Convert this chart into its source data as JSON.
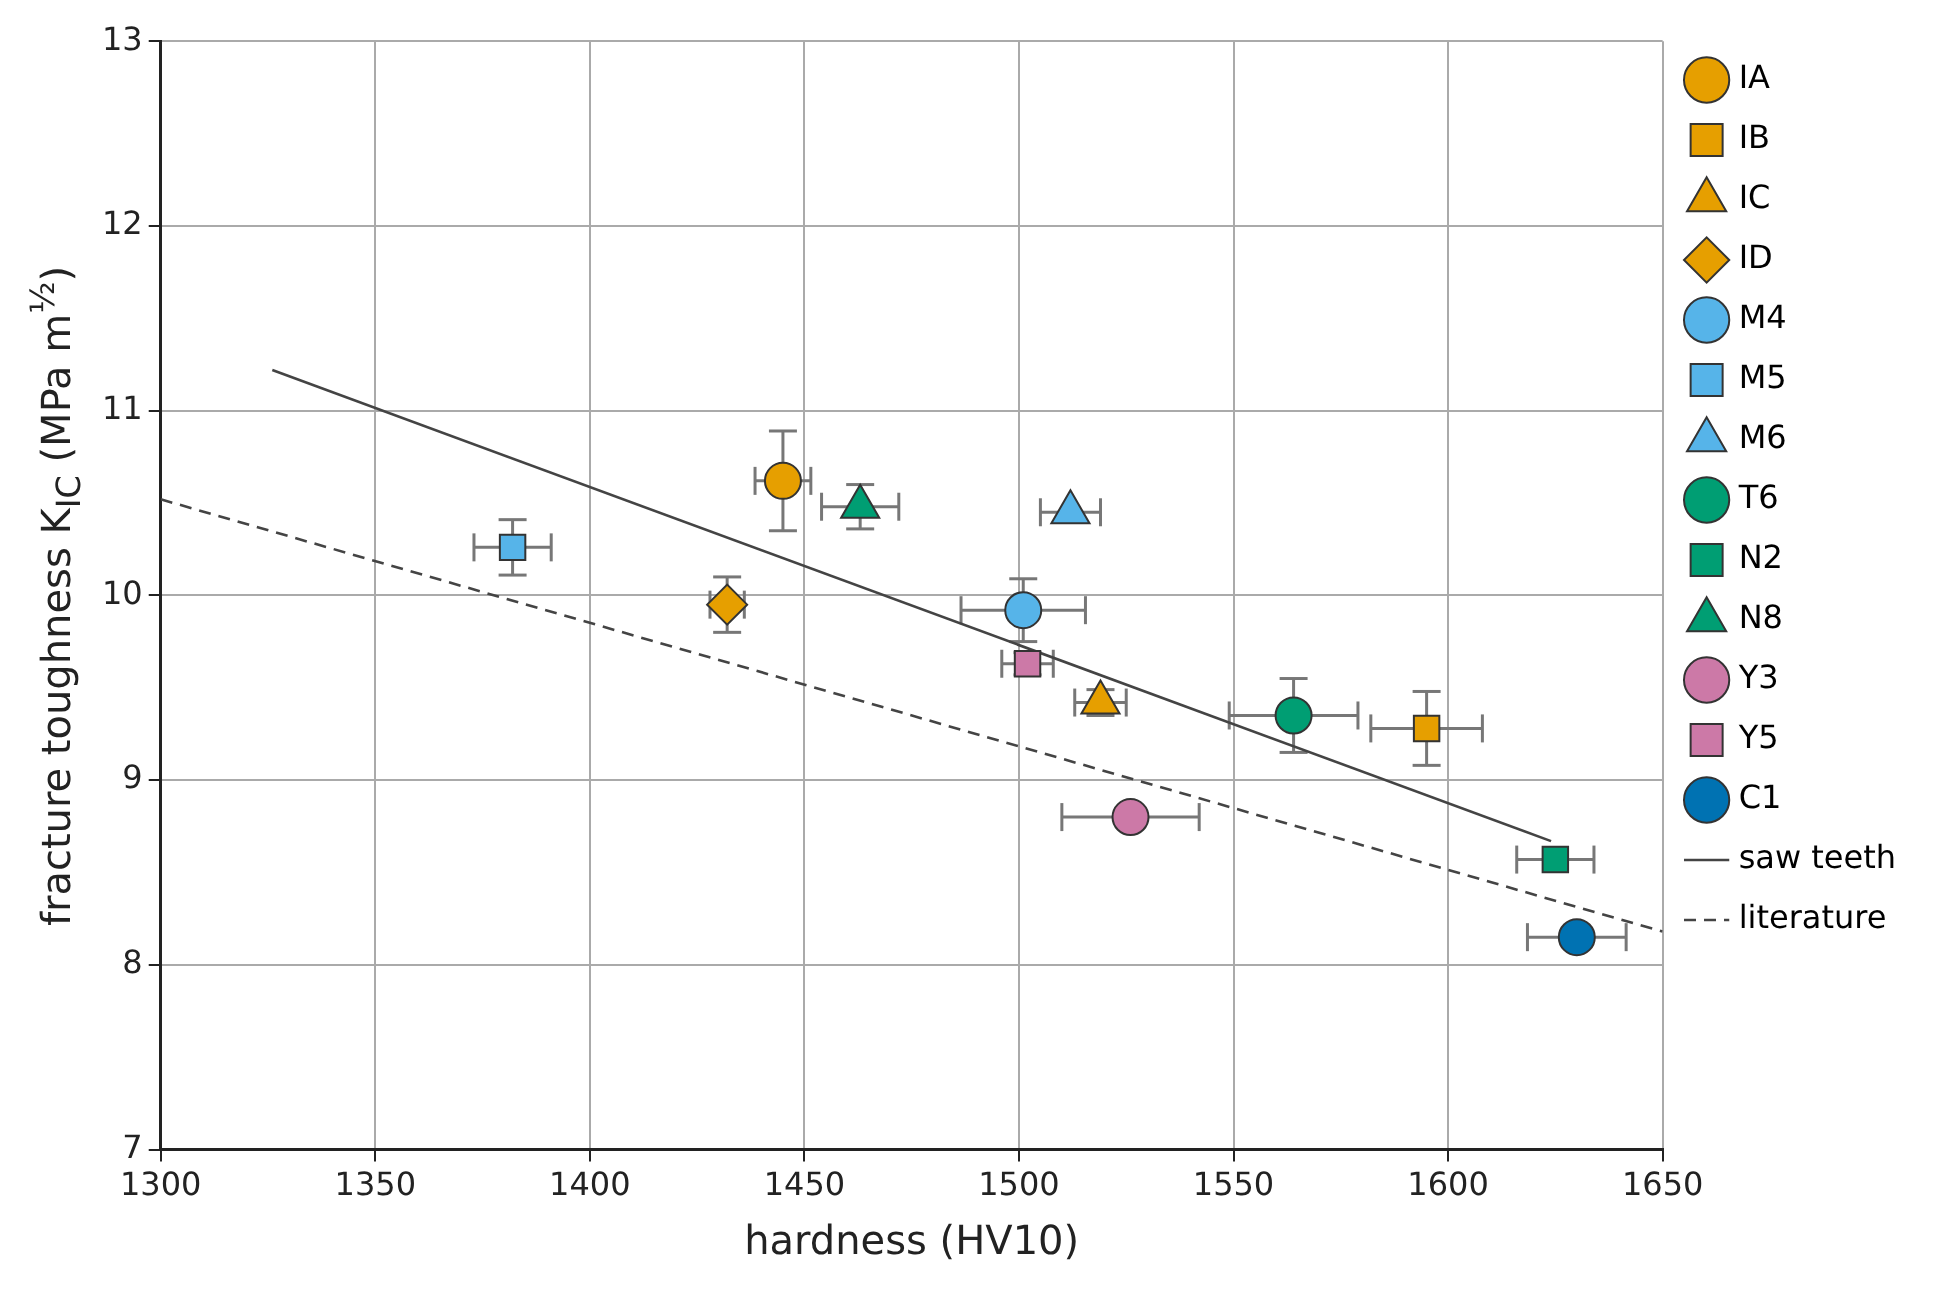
{
  "chart_data": {
    "type": "scatter",
    "xlabel": "hardness (HV10)",
    "ylabel": "fracture toughness K$_{IC}$ (MPa m$^{½}$)",
    "xlim": [
      1300,
      1650
    ],
    "xticks": [
      1300,
      1350,
      1400,
      1450,
      1500,
      1550,
      1600,
      1650
    ],
    "ylim": [
      7,
      13
    ],
    "yticks": [
      7,
      8,
      9,
      10,
      11,
      12,
      13
    ],
    "grid": true,
    "legend": "right",
    "series": [
      {
        "name": "IA",
        "color": "#e69f00",
        "marker": "circle",
        "x": [
          1445
        ],
        "values": [
          10.62
        ],
        "errors": [
          0.27
        ],
        "xerrors": [
          6.5
        ]
      },
      {
        "name": "IB",
        "color": "#e69f00",
        "marker": "square",
        "x": [
          1595
        ],
        "values": [
          9.28
        ],
        "errors": [
          0.2
        ],
        "xerrors": [
          13
        ]
      },
      {
        "name": "IC",
        "color": "#e69f00",
        "marker": "triangle",
        "x": [
          1519
        ],
        "values": [
          9.42
        ],
        "errors": [
          0.07
        ],
        "xerrors": [
          6
        ]
      },
      {
        "name": "ID",
        "color": "#e69f00",
        "marker": "diamond",
        "x": [
          1432
        ],
        "values": [
          9.95
        ],
        "errors": [
          0.15
        ],
        "xerrors": [
          4
        ]
      },
      {
        "name": "M4",
        "color": "#56b4e9",
        "marker": "circle",
        "x": [
          1501
        ],
        "values": [
          9.92
        ],
        "errors": [
          0.17
        ],
        "xerrors": [
          14.5
        ]
      },
      {
        "name": "M5",
        "color": "#56b4e9",
        "marker": "square",
        "x": [
          1382
        ],
        "values": [
          10.26
        ],
        "errors": [
          0.15
        ],
        "xerrors": [
          9
        ]
      },
      {
        "name": "M6",
        "color": "#56b4e9",
        "marker": "triangle",
        "x": [
          1512
        ],
        "values": [
          10.45
        ],
        "errors": [
          null
        ],
        "xerrors": [
          7
        ]
      },
      {
        "name": "T6",
        "color": "#009e73",
        "marker": "circle",
        "x": [
          1564
        ],
        "values": [
          9.35
        ],
        "errors": [
          0.2
        ],
        "xerrors": [
          15
        ]
      },
      {
        "name": "N2",
        "color": "#009e73",
        "marker": "square",
        "x": [
          1625
        ],
        "values": [
          8.57
        ],
        "errors": [
          null
        ],
        "xerrors": [
          9
        ]
      },
      {
        "name": "N8",
        "color": "#009e73",
        "marker": "triangle",
        "x": [
          1463
        ],
        "values": [
          10.48
        ],
        "errors": [
          0.12
        ],
        "xerrors": [
          9
        ]
      },
      {
        "name": "Y3",
        "color": "#cc79a7",
        "marker": "circle",
        "x": [
          1526
        ],
        "values": [
          8.8
        ],
        "errors": [
          null
        ],
        "xerrors": [
          16
        ]
      },
      {
        "name": "Y5",
        "color": "#cc79a7",
        "marker": "square",
        "x": [
          1502
        ],
        "values": [
          9.63
        ],
        "errors": [
          0.06
        ],
        "xerrors": [
          6
        ]
      },
      {
        "name": "C1",
        "color": "#0072b2",
        "marker": "circle",
        "x": [
          1630
        ],
        "values": [
          8.15
        ],
        "errors": [
          null
        ],
        "xerrors": [
          11.5
        ]
      },
      {
        "name": "saw teeth",
        "type": "line",
        "color": "#444444",
        "line_style": "solid",
        "marker": "none",
        "x": [
          1326,
          1624
        ],
        "values": [
          11.22,
          8.67
        ]
      },
      {
        "name": "literature",
        "type": "line",
        "color": "#444444",
        "line_style": "dashed",
        "marker": "none",
        "x": [
          1300,
          1650
        ],
        "values": [
          10.52,
          8.18
        ]
      }
    ]
  }
}
